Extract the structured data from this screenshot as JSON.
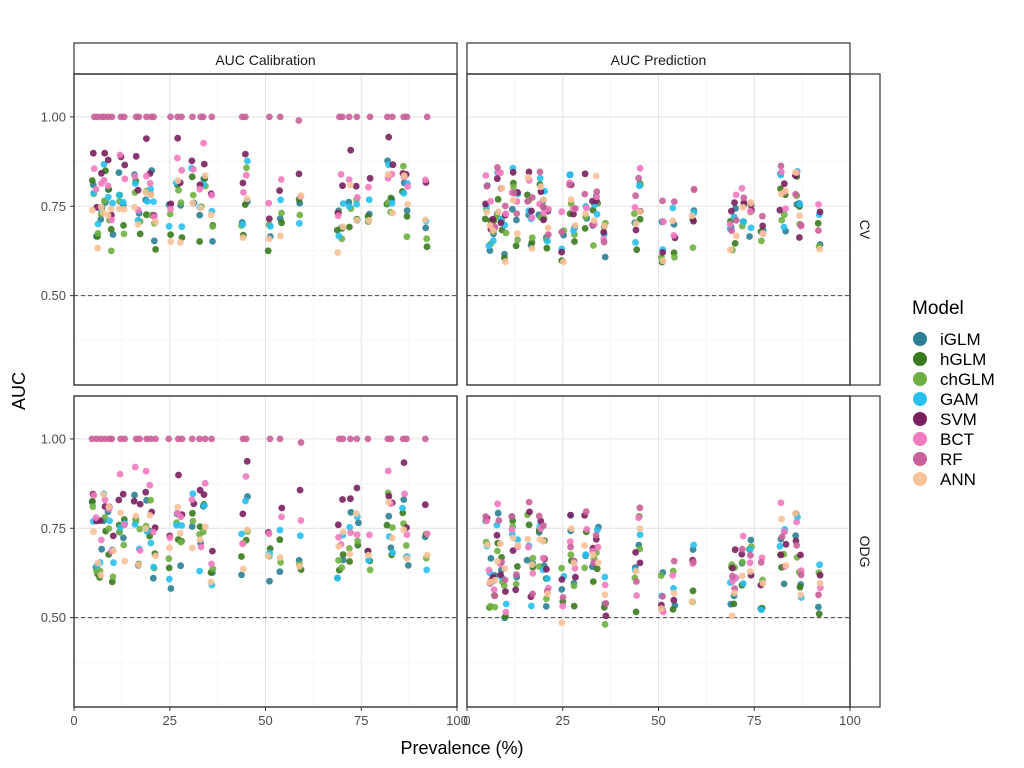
{
  "chart_data": {
    "type": "scatter",
    "title": "",
    "xlabel": "Prevalence (%)",
    "ylabel": "AUC",
    "xlim": [
      0,
      100
    ],
    "ylim": [
      0.25,
      1.12
    ],
    "x_ticks": [
      0,
      25,
      50,
      75,
      100
    ],
    "y_ticks": [
      0.5,
      0.75,
      1.0
    ],
    "y_tick_labels": [
      "0.50",
      "0.75",
      "1.00"
    ],
    "reference_line": 0.5,
    "grid": true,
    "legend_position": "right",
    "legend_title": "Model",
    "facet_columns": [
      "AUC Calibration",
      "AUC Prediction"
    ],
    "facet_rows": [
      "CV",
      "ODG"
    ],
    "prevalence_sites": [
      5,
      6,
      7,
      8,
      9,
      10,
      12,
      13,
      16,
      17,
      19,
      20,
      21,
      25,
      27,
      28,
      31,
      33,
      34,
      36,
      44,
      45,
      51,
      54,
      59,
      69,
      70,
      72,
      74,
      77,
      82,
      83,
      86,
      87,
      92
    ],
    "series": [
      {
        "name": "iGLM",
        "color": "#2b7f95"
      },
      {
        "name": "hGLM",
        "color": "#3a7a1e"
      },
      {
        "name": "chGLM",
        "color": "#6fb043"
      },
      {
        "name": "GAM",
        "color": "#27c0ee"
      },
      {
        "name": "SVM",
        "color": "#7a1f5e"
      },
      {
        "name": "BCT",
        "color": "#f27ac0"
      },
      {
        "name": "RF",
        "color": "#c9609a"
      },
      {
        "name": "ANN",
        "color": "#f8c298"
      }
    ],
    "panels": [
      {
        "row": "CV",
        "col": "AUC Calibration",
        "means": {
          "iGLM": 0.76,
          "hGLM": 0.74,
          "chGLM": 0.74,
          "GAM": 0.77,
          "SVM": 0.84,
          "BCT": 0.83,
          "RF": 1.0,
          "ANN": 0.74
        },
        "spread": 0.08
      },
      {
        "row": "CV",
        "col": "AUC Prediction",
        "means": {
          "iGLM": 0.72,
          "hGLM": 0.71,
          "chGLM": 0.71,
          "GAM": 0.73,
          "SVM": 0.74,
          "BCT": 0.76,
          "RF": 0.77,
          "ANN": 0.72
        },
        "spread": 0.08
      },
      {
        "row": "ODG",
        "col": "AUC Calibration",
        "means": {
          "iGLM": 0.72,
          "hGLM": 0.72,
          "chGLM": 0.72,
          "GAM": 0.73,
          "SVM": 0.82,
          "BCT": 0.79,
          "RF": 1.0,
          "ANN": 0.72
        },
        "spread": 0.09
      },
      {
        "row": "ODG",
        "col": "AUC Prediction",
        "means": {
          "iGLM": 0.65,
          "hGLM": 0.64,
          "chGLM": 0.64,
          "GAM": 0.65,
          "SVM": 0.66,
          "BCT": 0.67,
          "RF": 0.68,
          "ANN": 0.64
        },
        "spread": 0.1
      }
    ]
  }
}
